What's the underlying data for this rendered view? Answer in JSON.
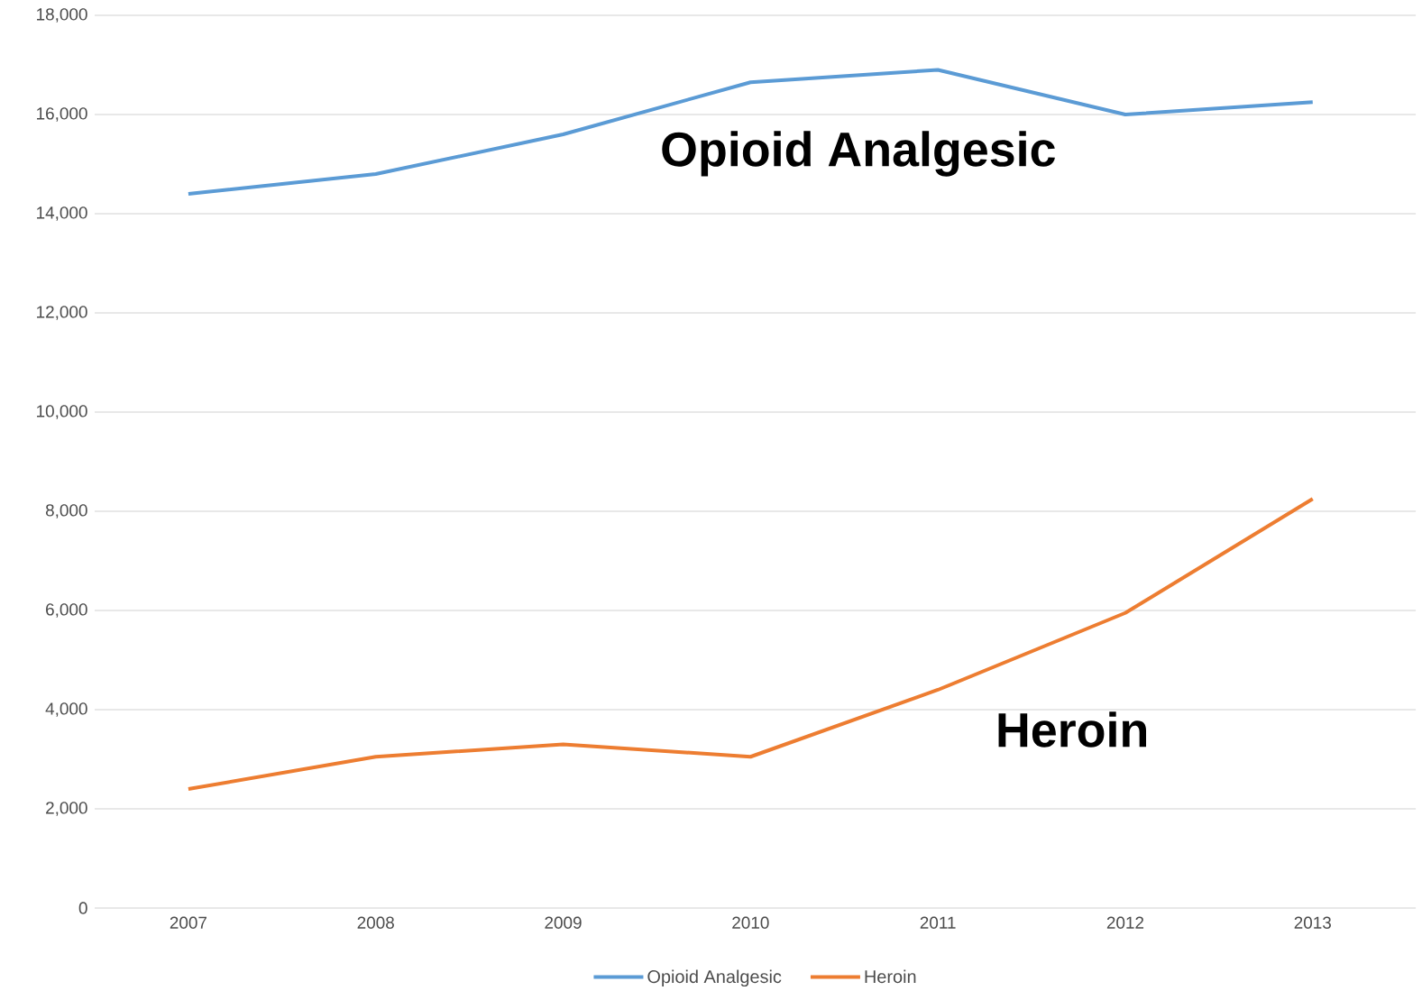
{
  "chart_data": {
    "type": "line",
    "categories": [
      "2007",
      "2008",
      "2009",
      "2010",
      "2011",
      "2012",
      "2013"
    ],
    "series": [
      {
        "name": "Opioid Analgesic",
        "color": "#5b9bd5",
        "values": [
          14400,
          14800,
          15600,
          16650,
          16900,
          16000,
          16250
        ]
      },
      {
        "name": "Heroin",
        "color": "#ed7d31",
        "values": [
          2400,
          3050,
          3300,
          3050,
          4400,
          5950,
          8250
        ]
      }
    ],
    "ylim": [
      0,
      18000
    ],
    "yticks": [
      0,
      {
        "value": 2000,
        "label": "2,000"
      },
      {
        "value": 4000,
        "label": "4,000"
      },
      {
        "value": 6000,
        "label": "6,000"
      },
      {
        "value": 8000,
        "label": "8,000"
      },
      {
        "value": 10000,
        "label": "10,000"
      },
      {
        "value": 12000,
        "label": "12,000"
      },
      {
        "value": 14000,
        "label": "14,000"
      },
      {
        "value": 16000,
        "label": "16,000"
      },
      {
        "value": 18000,
        "label": "18,000"
      }
    ],
    "grid": "y",
    "legend": "bottom",
    "marker": "none",
    "line_style": "solid",
    "annotations": [
      "Opioid Analgesic",
      "Heroin"
    ]
  }
}
